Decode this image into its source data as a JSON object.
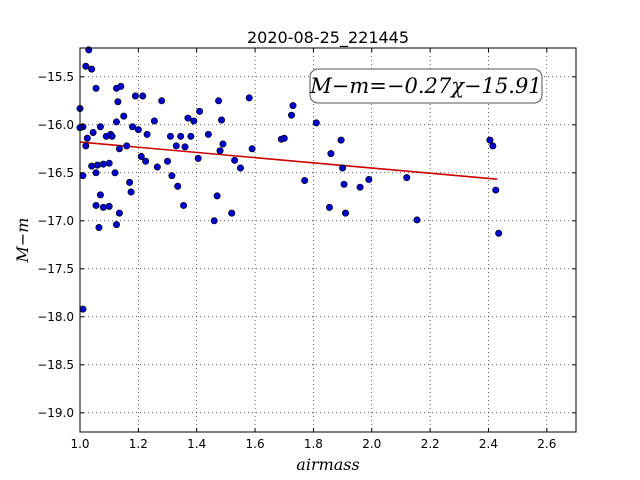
{
  "chart_data": {
    "type": "scatter",
    "title": "2020-08-25_221445",
    "xlabel": "airmass",
    "ylabel": "M−m",
    "xlim": [
      1.0,
      2.7
    ],
    "ylim": [
      -15.2,
      -19.2
    ],
    "y_inverted": true,
    "xticks": [
      1.0,
      1.2,
      1.4,
      1.6,
      1.8,
      2.0,
      2.2,
      2.4,
      2.6
    ],
    "xtick_labels": [
      "1.0",
      "1.2",
      "1.4",
      "1.6",
      "1.8",
      "2.0",
      "2.2",
      "2.4",
      "2.6"
    ],
    "yticks": [
      -15.5,
      -16.0,
      -16.5,
      -17.0,
      -17.5,
      -18.0,
      -18.5,
      -19.0
    ],
    "ytick_labels": [
      "−15.5",
      "−16.0",
      "−16.5",
      "−17.0",
      "−17.5",
      "−18.0",
      "−18.5",
      "−19.0"
    ],
    "grid": true,
    "annotation": "M−m=−0.27χ−15.91",
    "annotation_position": "top-right",
    "colors": {
      "points": "#0000cc",
      "fit": "#cc0000"
    },
    "fit": {
      "slope": -0.27,
      "intercept": -15.91,
      "x_range": [
        1.0,
        2.43
      ]
    },
    "series": [
      {
        "type": "scatter",
        "x": [
          1.0,
          1.03,
          1.02,
          1.04,
          1.055,
          1.01,
          1.0,
          1.025,
          1.045,
          1.07,
          1.09,
          1.105,
          1.11,
          1.02,
          1.06,
          1.08,
          1.1,
          1.04,
          1.055,
          1.07,
          1.01,
          1.125,
          1.14,
          1.13,
          1.15,
          1.125,
          1.135,
          1.19,
          1.215,
          1.18,
          1.2,
          1.23,
          1.16,
          1.21,
          1.225,
          1.255,
          1.265,
          1.28,
          1.3,
          1.31,
          1.315,
          1.33,
          1.345,
          1.36,
          1.38,
          1.37,
          1.335,
          1.355,
          1.39,
          1.41,
          1.405,
          1.44,
          1.475,
          1.485,
          1.48,
          1.49,
          1.47,
          1.46,
          1.53,
          1.55,
          1.52,
          1.58,
          1.59,
          1.69,
          1.7,
          1.725,
          1.73,
          1.77,
          1.81,
          1.86,
          1.855,
          1.9,
          1.895,
          1.905,
          1.91,
          1.96,
          1.99,
          2.12,
          2.155,
          2.405,
          2.415,
          2.425,
          2.435,
          1.12,
          1.135,
          1.17,
          1.175,
          1.055,
          1.08,
          1.1,
          1.125,
          1.065,
          1.01
        ],
        "y": [
          -15.83,
          -15.22,
          -15.39,
          -15.42,
          -15.62,
          -16.02,
          -16.03,
          -16.14,
          -16.08,
          -16.02,
          -16.12,
          -16.1,
          -16.12,
          -16.22,
          -16.42,
          -16.41,
          -16.4,
          -16.43,
          -16.5,
          -16.73,
          -16.53,
          -15.62,
          -15.6,
          -15.76,
          -15.91,
          -15.97,
          -16.25,
          -15.7,
          -15.7,
          -16.02,
          -16.05,
          -16.1,
          -16.22,
          -16.33,
          -16.38,
          -15.96,
          -16.44,
          -15.75,
          -16.38,
          -16.12,
          -16.53,
          -16.22,
          -16.12,
          -16.23,
          -16.12,
          -15.93,
          -16.64,
          -16.84,
          -15.96,
          -15.86,
          -16.35,
          -16.1,
          -15.75,
          -15.95,
          -16.27,
          -16.2,
          -16.74,
          -17.0,
          -16.37,
          -16.45,
          -16.92,
          -15.72,
          -16.25,
          -16.15,
          -16.14,
          -15.9,
          -15.8,
          -16.58,
          -15.98,
          -16.3,
          -16.86,
          -16.45,
          -16.16,
          -16.62,
          -16.92,
          -16.65,
          -16.57,
          -16.55,
          -16.99,
          -16.16,
          -16.22,
          -16.68,
          -17.13,
          -16.5,
          -16.92,
          -16.6,
          -16.7,
          -16.84,
          -16.86,
          -16.85,
          -17.04,
          -17.07,
          -17.92
        ]
      }
    ]
  }
}
